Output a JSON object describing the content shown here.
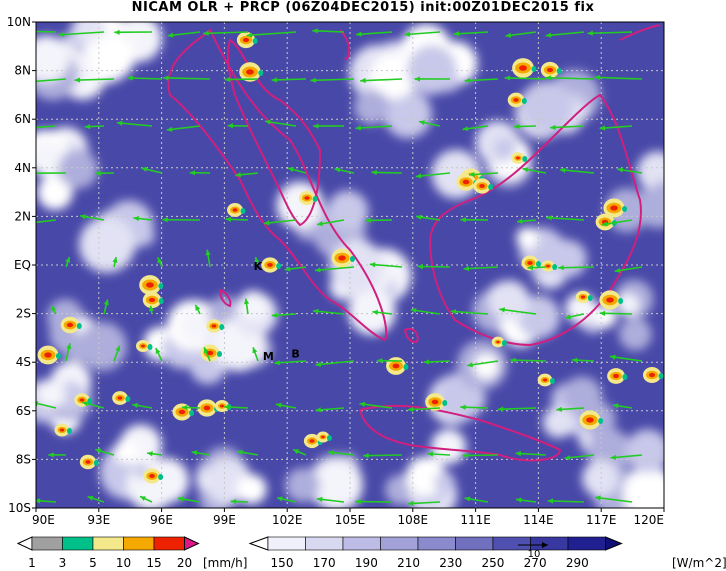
{
  "title": "NICAM OLR + PRCP (06Z04DEC2015) init:00Z01DEC2015 fix",
  "map": {
    "lon_range": [
      90,
      120
    ],
    "lat_range": [
      -10,
      10
    ],
    "lon_ticks": [
      "90E",
      "93E",
      "96E",
      "99E",
      "102E",
      "105E",
      "108E",
      "111E",
      "114E",
      "117E",
      "120E"
    ],
    "lat_ticks": [
      "10N",
      "8N",
      "6N",
      "4N",
      "2N",
      "EQ",
      "2S",
      "4S",
      "6S",
      "8S",
      "10S"
    ],
    "markers": [
      {
        "label": "K",
        "lon": 100.6,
        "lat": -0.2
      },
      {
        "label": "M",
        "lon": 101.1,
        "lat": -3.9
      },
      {
        "label": "B",
        "lon": 102.4,
        "lat": -3.8
      }
    ],
    "colors": {
      "coast": "#d0207f",
      "wind": "#22cc22",
      "olr_low": "#ffffff",
      "olr_high": "#1a1a80"
    }
  },
  "precip_colorbar": {
    "values": [
      "1",
      "3",
      "5",
      "10",
      "15",
      "20"
    ],
    "unit": "[mm/h]",
    "colors": [
      "#ffffff",
      "#a0a0a0",
      "#00c08a",
      "#f4e98a",
      "#f4a800",
      "#ee2200",
      "#e0158a"
    ]
  },
  "olr_colorbar": {
    "values": [
      "150",
      "170",
      "190",
      "210",
      "230",
      "250",
      "270",
      "290"
    ],
    "unit": "[W/m^2]",
    "vector_ref": "10",
    "colors": [
      "#ffffff",
      "#f0f0fa",
      "#d8d8f0",
      "#bcbce6",
      "#a2a2d8",
      "#8a8acc",
      "#7070bf",
      "#5050b0",
      "#3838a0",
      "#202090",
      "#10107a"
    ]
  }
}
